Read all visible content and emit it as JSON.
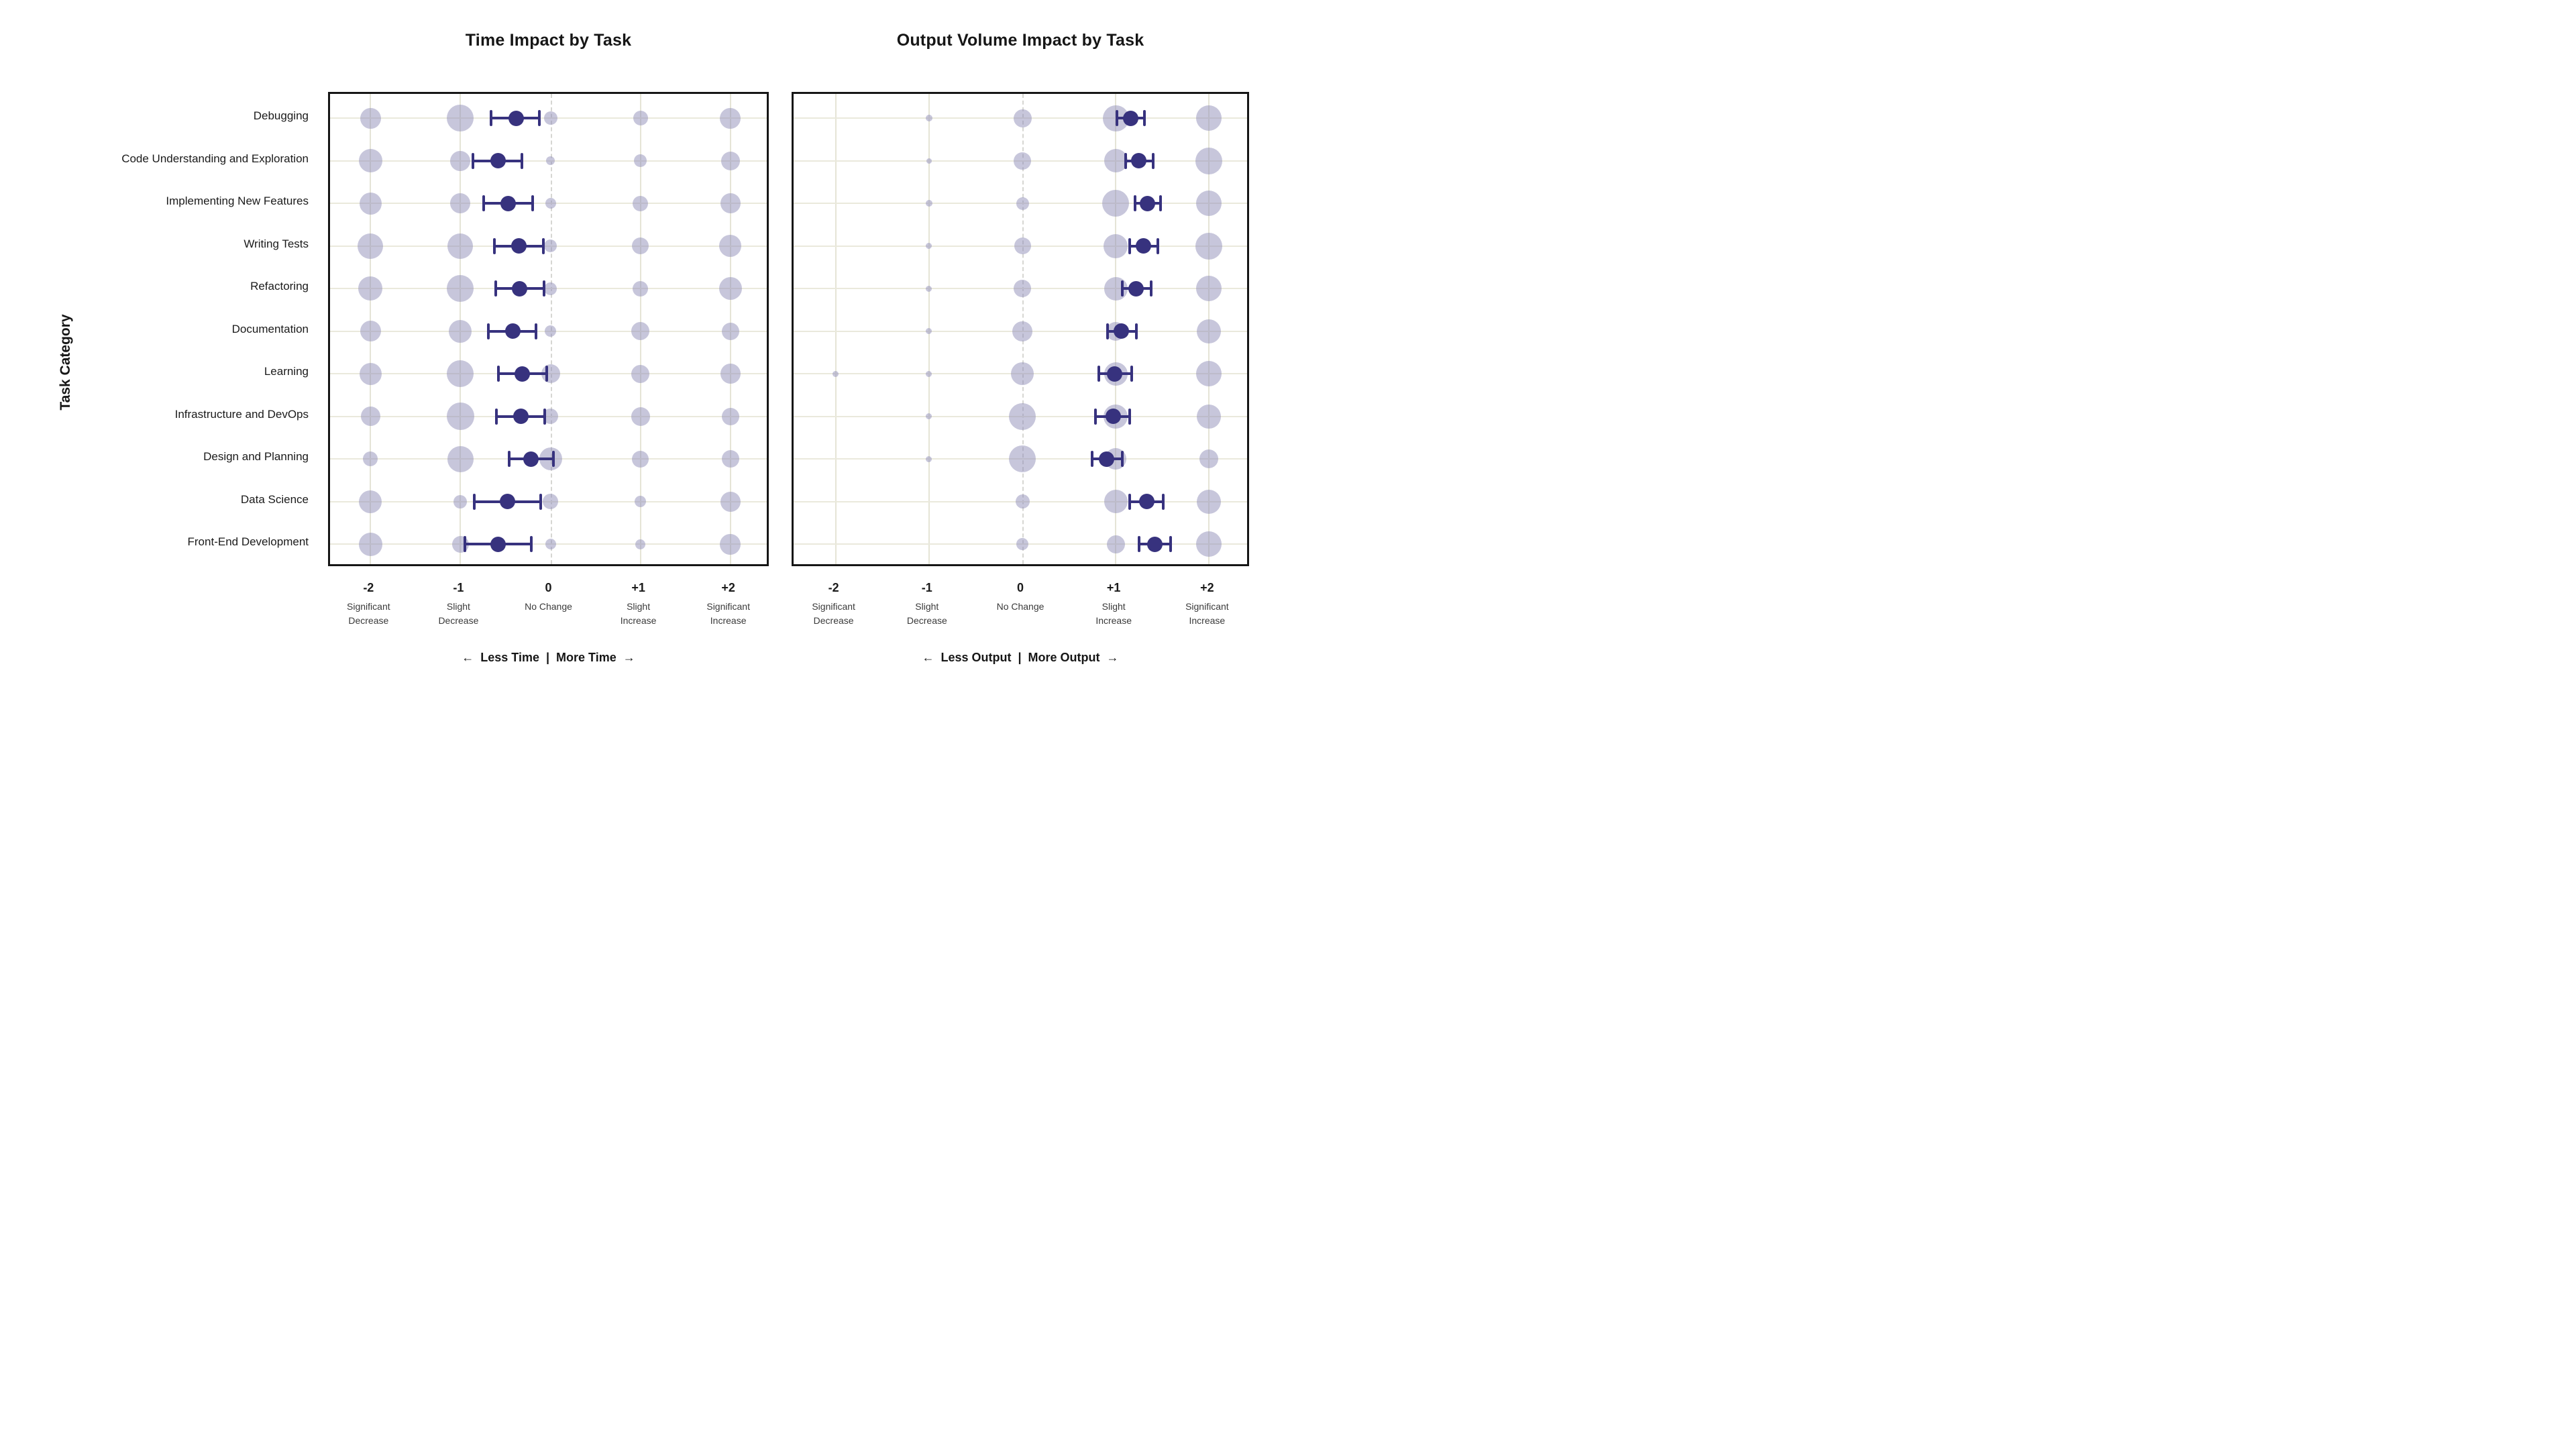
{
  "y_axis_title": "Task Category",
  "colors": {
    "mean_and_ci": "#37327E",
    "bubble_fill": "#908DB7",
    "gridline": "#E5E4D6",
    "zero_line_dashed": "#D6D6D2",
    "frame": "#161616",
    "text": "#1A1A1A",
    "background": "#FFFFFF"
  },
  "chart_data": [
    {
      "type": "bubble",
      "title": "Time Impact by Task",
      "ylabel": "Task Category",
      "xlim": [
        -2.45,
        2.45
      ],
      "grid": true,
      "columns": [
        -2,
        -1,
        0,
        1,
        2
      ],
      "x_tick_labels": [
        "-2",
        "-1",
        "0",
        "+1",
        "+2"
      ],
      "x_tick_sublabels": [
        [
          "Significant",
          "Decrease"
        ],
        [
          "Slight",
          "Decrease"
        ],
        [
          "No Change",
          ""
        ],
        [
          "Slight",
          "Increase"
        ],
        [
          "Significant",
          "Increase"
        ]
      ],
      "categories": [
        "Debugging",
        "Code Understanding and Exploration",
        "Implementing New Features",
        "Writing Tests",
        "Refactoring",
        "Documentation",
        "Learning",
        "Infrastructure and DevOps",
        "Design and Planning",
        "Data Science",
        "Front-End Development"
      ],
      "bubble_radii": [
        [
          31,
          40,
          20,
          22,
          31
        ],
        [
          35,
          30,
          13,
          19,
          28
        ],
        [
          33,
          30,
          16,
          23,
          30
        ],
        [
          38,
          38,
          19,
          25,
          33
        ],
        [
          36,
          40,
          19,
          23,
          34
        ],
        [
          31,
          34,
          17,
          27,
          26
        ],
        [
          33,
          40,
          28,
          27,
          30
        ],
        [
          29,
          41,
          23,
          28,
          26
        ],
        [
          22,
          39,
          34,
          25,
          26
        ],
        [
          34,
          20,
          23,
          17,
          30
        ],
        [
          35,
          25,
          16,
          15,
          31
        ]
      ],
      "mean": [
        -0.38,
        -0.58,
        -0.47,
        -0.35,
        -0.34,
        -0.42,
        -0.31,
        -0.33,
        -0.22,
        -0.48,
        -0.58
      ],
      "ci_low": [
        -0.66,
        -0.86,
        -0.74,
        -0.62,
        -0.61,
        -0.69,
        -0.58,
        -0.6,
        -0.46,
        -0.85,
        -0.95
      ],
      "ci_high": [
        -0.12,
        -0.32,
        -0.2,
        -0.08,
        -0.07,
        -0.16,
        -0.04,
        -0.06,
        0.03,
        -0.11,
        -0.21
      ],
      "footer": "←  Less Time  |  More Time  →"
    },
    {
      "type": "bubble",
      "title": "Output Volume Impact by Task",
      "ylabel": "Task Category",
      "xlim": [
        -2.45,
        2.45
      ],
      "grid": true,
      "columns": [
        -2,
        -1,
        0,
        1,
        2
      ],
      "x_tick_labels": [
        "-2",
        "-1",
        "0",
        "+1",
        "+2"
      ],
      "x_tick_sublabels": [
        [
          "Significant",
          "Decrease"
        ],
        [
          "Slight",
          "Decrease"
        ],
        [
          "No Change",
          ""
        ],
        [
          "Slight",
          "Increase"
        ],
        [
          "Significant",
          "Increase"
        ]
      ],
      "categories": [
        "Debugging",
        "Code Understanding and Exploration",
        "Implementing New Features",
        "Writing Tests",
        "Refactoring",
        "Documentation",
        "Learning",
        "Infrastructure and DevOps",
        "Design and Planning",
        "Data Science",
        "Front-End Development"
      ],
      "bubble_radii": [
        [
          0,
          10,
          27,
          39,
          38
        ],
        [
          0,
          8,
          26,
          35,
          40
        ],
        [
          0,
          10,
          19,
          40,
          38
        ],
        [
          0,
          9,
          25,
          36,
          40
        ],
        [
          0,
          9,
          26,
          35,
          38
        ],
        [
          0,
          9,
          30,
          28,
          36
        ],
        [
          9,
          9,
          34,
          35,
          38
        ],
        [
          0,
          9,
          40,
          36,
          36
        ],
        [
          0,
          9,
          40,
          32,
          28
        ],
        [
          0,
          0,
          21,
          35,
          36
        ],
        [
          0,
          0,
          18,
          27,
          38
        ]
      ],
      "mean": [
        1.16,
        1.25,
        1.34,
        1.3,
        1.22,
        1.06,
        0.99,
        0.97,
        0.9,
        1.33,
        1.42
      ],
      "ci_low": [
        1.01,
        1.11,
        1.21,
        1.15,
        1.07,
        0.91,
        0.82,
        0.78,
        0.75,
        1.15,
        1.25
      ],
      "ci_high": [
        1.31,
        1.4,
        1.48,
        1.45,
        1.38,
        1.22,
        1.17,
        1.15,
        1.07,
        1.51,
        1.59
      ],
      "footer": "←  Less Output  |  More Output  →"
    }
  ]
}
